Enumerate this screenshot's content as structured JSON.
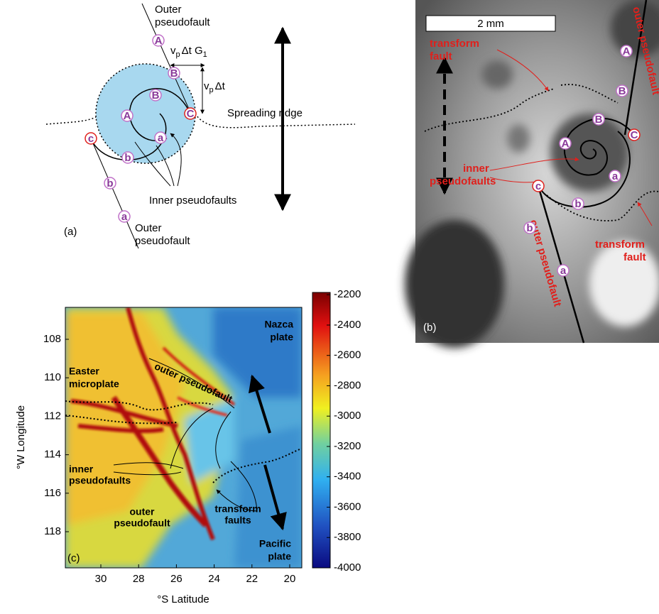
{
  "panel_a": {
    "label": "(a)",
    "outer_top": [
      "Outer",
      "pseudofault"
    ],
    "outer_bottom": [
      "Outer",
      "pseudofault"
    ],
    "velocity_g": [
      "v",
      "p",
      "Δt G",
      "1"
    ],
    "velocity": [
      "v",
      "p",
      "Δt"
    ],
    "ridge": "Spreading ridge",
    "inner": "Inner pseudofaults",
    "letters": [
      "A",
      "B",
      "C",
      "A",
      "B",
      "a",
      "b",
      "c",
      "b",
      "a"
    ]
  },
  "panel_b": {
    "label": "(b)",
    "scale": "2 mm",
    "transform_top": [
      "transform",
      "fault"
    ],
    "transform_bottom": [
      "transform",
      "fault"
    ],
    "outer_top": "outer pseudofault",
    "outer_bottom": "outer pseudofault",
    "inner": [
      "inner",
      "pseudofaults"
    ],
    "letters": [
      "A",
      "B",
      "B",
      "C",
      "A",
      "a",
      "b",
      "c",
      "b",
      "a"
    ]
  },
  "panel_c": {
    "label": "(c)",
    "xlabel": "°S Latitude",
    "ylabel": "°W Longitude",
    "xlim": [
      31.88,
      19.36
    ],
    "xticks": [
      30,
      28,
      26,
      24,
      22,
      20
    ],
    "ylim": [
      106.34,
      119.88
    ],
    "yticks": [
      108,
      110,
      112,
      114,
      116,
      118
    ],
    "clim": [
      -4000,
      -2185
    ],
    "cticks": [
      -2200,
      -2400,
      -2600,
      -2800,
      -3000,
      -3200,
      -3400,
      -3600,
      -3800,
      -4000
    ],
    "nazca": [
      "Nazca",
      "plate"
    ],
    "easter": [
      "Easter",
      "microplate"
    ],
    "outer_top": "outer pseudofault",
    "inner": [
      "inner",
      "pseudofaults"
    ],
    "outer_bottom": [
      "outer",
      "pseudofault"
    ],
    "transform": [
      "transform",
      "faults"
    ],
    "pacific": [
      "Pacific",
      "plate"
    ]
  }
}
